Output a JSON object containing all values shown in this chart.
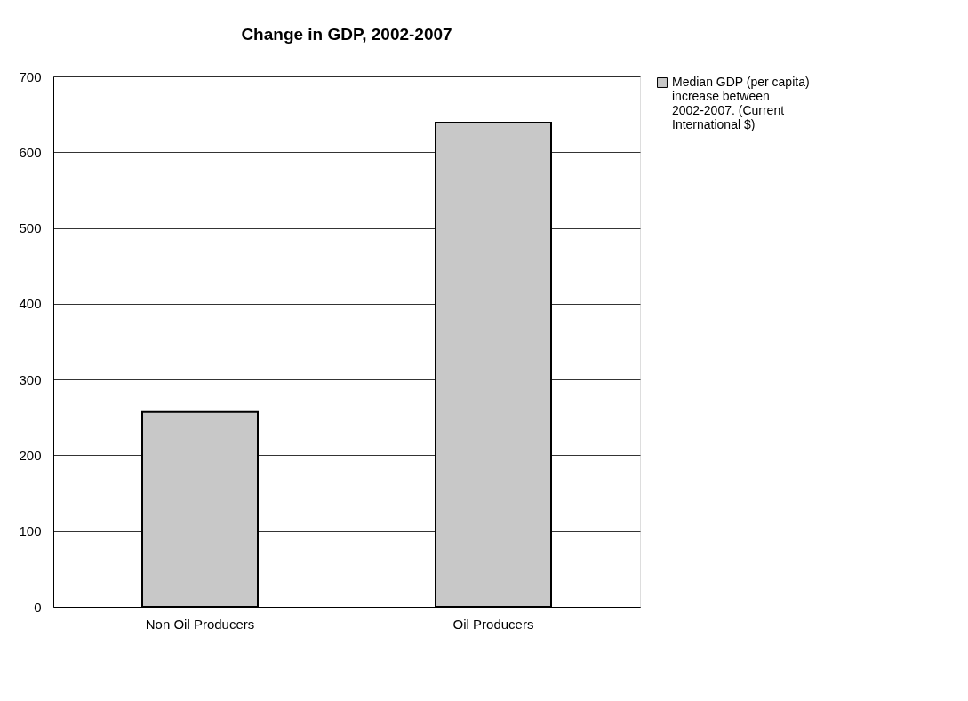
{
  "chart_data": {
    "type": "bar",
    "title": "Change in GDP, 2002-2007",
    "categories": [
      "Non Oil Producers",
      "Oil Producers"
    ],
    "series": [
      {
        "name": "Median GDP (per capita) increase between 2002-2007. (Current International $)",
        "color": "#c8c8c8",
        "values": [
          257,
          639
        ]
      }
    ],
    "ylim": [
      0,
      700
    ],
    "yticks": [
      0,
      100,
      200,
      300,
      400,
      500,
      600,
      700
    ],
    "grid": "y",
    "legend": "right"
  }
}
